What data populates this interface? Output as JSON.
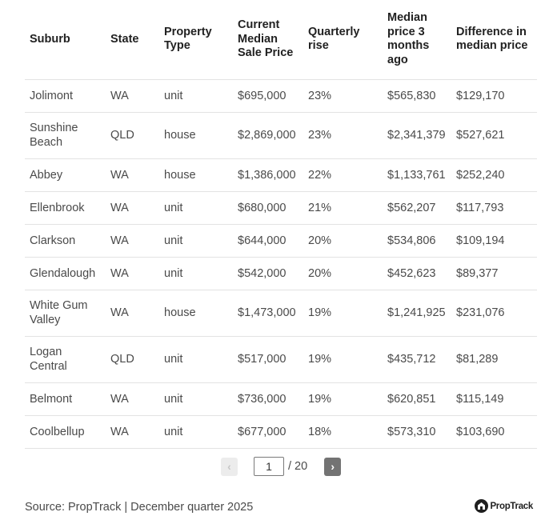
{
  "table": {
    "columns": [
      "Suburb",
      "State",
      "Property Type",
      "Current Median Sale Price",
      "Quarterly rise",
      "Median price 3 months ago",
      "Difference in median price"
    ],
    "rows": [
      [
        "Jolimont",
        "WA",
        "unit",
        "$695,000",
        "23%",
        "$565,830",
        "$129,170"
      ],
      [
        "Sunshine Beach",
        "QLD",
        "house",
        "$2,869,000",
        "23%",
        "$2,341,379",
        "$527,621"
      ],
      [
        "Abbey",
        "WA",
        "house",
        "$1,386,000",
        "22%",
        "$1,133,761",
        "$252,240"
      ],
      [
        "Ellenbrook",
        "WA",
        "unit",
        "$680,000",
        "21%",
        "$562,207",
        "$117,793"
      ],
      [
        "Clarkson",
        "WA",
        "unit",
        "$644,000",
        "20%",
        "$534,806",
        "$109,194"
      ],
      [
        "Glendalough",
        "WA",
        "unit",
        "$542,000",
        "20%",
        "$452,623",
        "$89,377"
      ],
      [
        "White Gum Valley",
        "WA",
        "house",
        "$1,473,000",
        "19%",
        "$1,241,925",
        "$231,076"
      ],
      [
        "Logan Central",
        "QLD",
        "unit",
        "$517,000",
        "19%",
        "$435,712",
        "$81,289"
      ],
      [
        "Belmont",
        "WA",
        "unit",
        "$736,000",
        "19%",
        "$620,851",
        "$115,149"
      ],
      [
        "Coolbellup",
        "WA",
        "unit",
        "$677,000",
        "18%",
        "$573,310",
        "$103,690"
      ]
    ]
  },
  "pagination": {
    "prev_icon": "chevron-left-icon",
    "next_icon": "chevron-right-icon",
    "prev_glyph": "‹",
    "next_glyph": "›",
    "current_page": "1",
    "total_label": "/ 20"
  },
  "footer": {
    "source": "Source: PropTrack | December quarter 2025",
    "brand": "PropTrack",
    "brand_icon": "proptrack-logo-icon"
  },
  "colors": {
    "border": "#e3e3e3",
    "header_text": "#222222",
    "cell_text": "#4a4a4a",
    "next_button": "#737373",
    "prev_button": "#ececec"
  }
}
